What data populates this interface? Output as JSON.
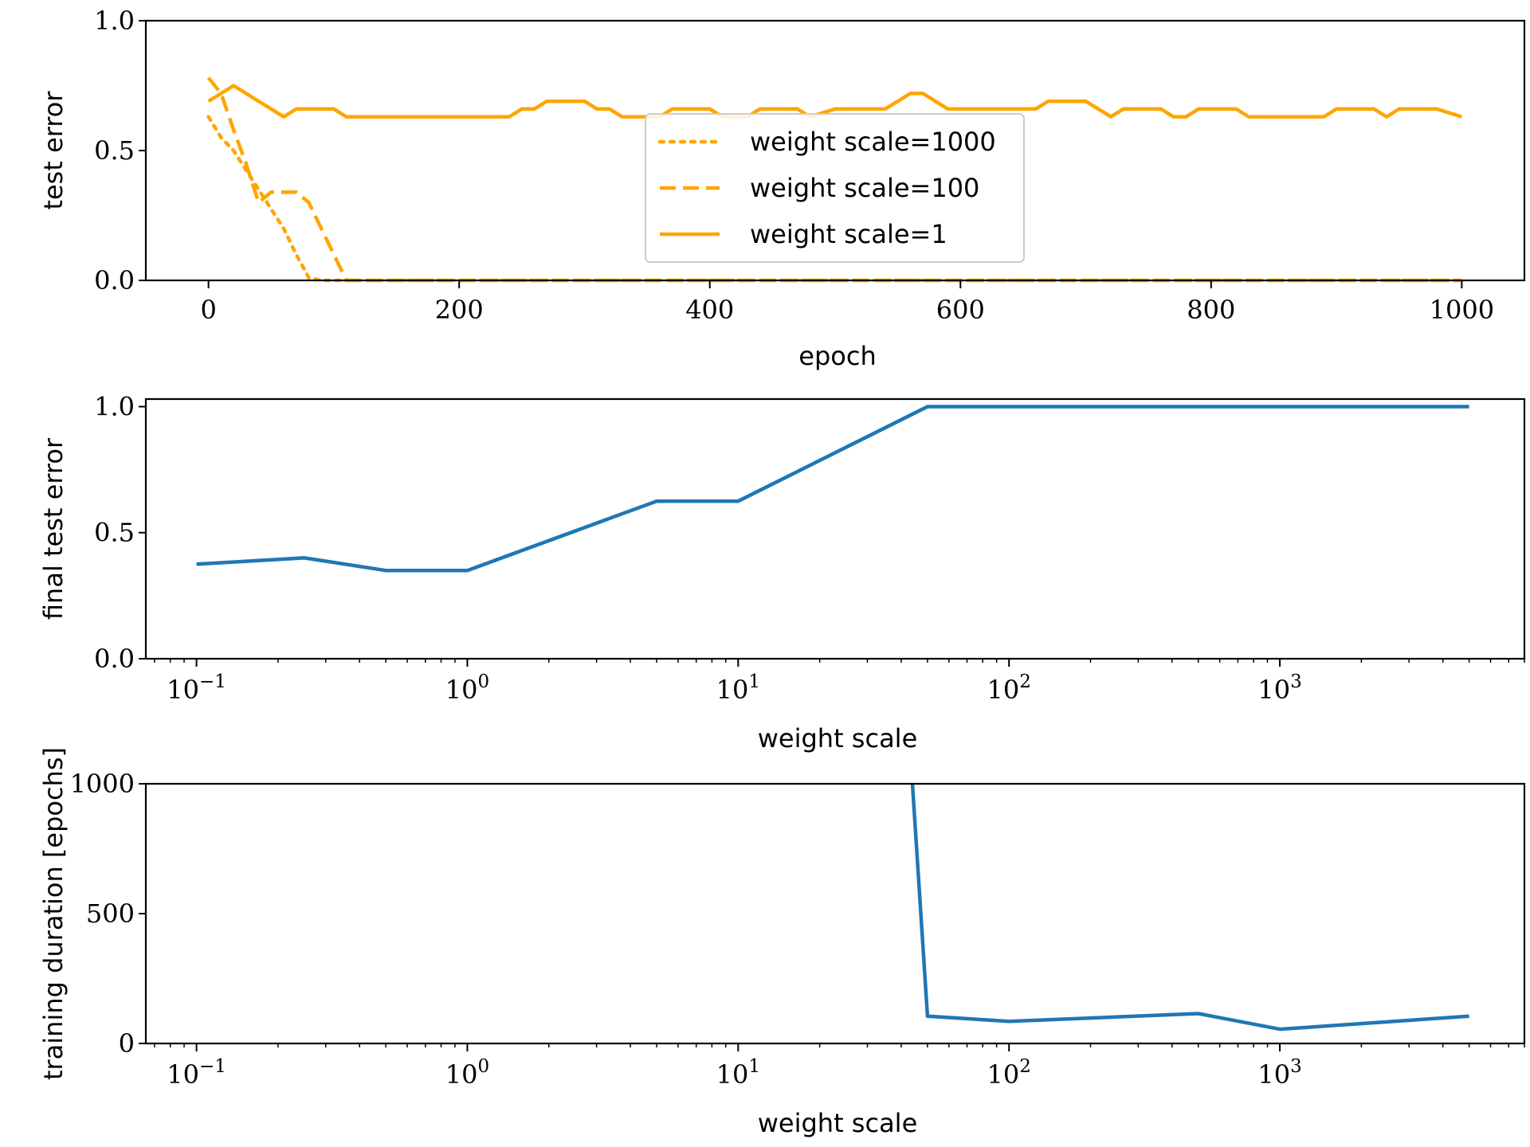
{
  "chart_data": [
    {
      "type": "line",
      "title": "",
      "xlabel": "epoch",
      "ylabel": "test error",
      "xlim": [
        -50,
        1050
      ],
      "ylim": [
        0,
        1
      ],
      "xticks": [
        0,
        200,
        400,
        600,
        800,
        1000
      ],
      "xtick_labels": [
        "0",
        "200",
        "400",
        "600",
        "800",
        "1000"
      ],
      "yticks": [
        0,
        0.5,
        1
      ],
      "ytick_labels": [
        "0.0",
        "0.5",
        "1.0"
      ],
      "legend_position": "center",
      "series": [
        {
          "name": "weight scale=1000",
          "color": "#ffa500",
          "dash": "dotted",
          "x": [
            0,
            10,
            20,
            40,
            60,
            70,
            80,
            90,
            100,
            1000
          ],
          "y": [
            0.63,
            0.55,
            0.5,
            0.35,
            0.2,
            0.1,
            0.01,
            0.0,
            0.0,
            0.0
          ]
        },
        {
          "name": "weight scale=100",
          "color": "#ffa500",
          "dash": "dashed",
          "x": [
            0,
            10,
            20,
            30,
            40,
            50,
            60,
            70,
            80,
            90,
            100,
            110,
            1000
          ],
          "y": [
            0.78,
            0.72,
            0.58,
            0.45,
            0.3,
            0.34,
            0.34,
            0.34,
            0.3,
            0.2,
            0.1,
            0.0,
            0.0
          ]
        },
        {
          "name": "weight scale=1",
          "color": "#ffa500",
          "dash": "solid",
          "x": [
            0,
            20,
            40,
            60,
            70,
            100,
            110,
            240,
            250,
            260,
            270,
            300,
            310,
            320,
            330,
            360,
            370,
            400,
            410,
            430,
            440,
            470,
            480,
            500,
            540,
            560,
            570,
            590,
            660,
            670,
            700,
            720,
            730,
            760,
            770,
            780,
            790,
            820,
            830,
            890,
            900,
            930,
            940,
            950,
            960,
            980,
            1000
          ],
          "y": [
            0.69,
            0.75,
            0.69,
            0.63,
            0.66,
            0.66,
            0.63,
            0.63,
            0.66,
            0.66,
            0.69,
            0.69,
            0.66,
            0.66,
            0.63,
            0.63,
            0.66,
            0.66,
            0.63,
            0.63,
            0.66,
            0.66,
            0.63,
            0.66,
            0.66,
            0.72,
            0.72,
            0.66,
            0.66,
            0.69,
            0.69,
            0.63,
            0.66,
            0.66,
            0.63,
            0.63,
            0.66,
            0.66,
            0.63,
            0.63,
            0.66,
            0.66,
            0.63,
            0.66,
            0.66,
            0.66,
            0.63
          ]
        }
      ]
    },
    {
      "type": "line",
      "title": "",
      "xlabel": "weight scale",
      "ylabel": "final test error",
      "xscale": "log",
      "xlim": [
        0.065,
        8000
      ],
      "ylim": [
        0,
        1.03
      ],
      "xticks": [
        0.1,
        1,
        10,
        100,
        1000
      ],
      "xtick_labels": [
        [
          "10",
          "−1"
        ],
        [
          "10",
          "0"
        ],
        [
          "10",
          "1"
        ],
        [
          "10",
          "2"
        ],
        [
          "10",
          "3"
        ]
      ],
      "yticks": [
        0,
        0.5,
        1
      ],
      "ytick_labels": [
        "0.0",
        "0.5",
        "1.0"
      ],
      "series": [
        {
          "color": "#1f77b4",
          "x": [
            0.1,
            0.25,
            0.5,
            1,
            5,
            10,
            50,
            100,
            500,
            1000,
            5000
          ],
          "y": [
            0.375,
            0.4,
            0.35,
            0.35,
            0.625,
            0.625,
            1.0,
            1.0,
            1.0,
            1.0,
            1.0
          ]
        }
      ]
    },
    {
      "type": "line",
      "title": "",
      "xlabel": "weight scale",
      "ylabel": "training duration [epochs]",
      "xscale": "log",
      "xlim": [
        0.065,
        8000
      ],
      "ylim": [
        0,
        1000
      ],
      "xticks": [
        0.1,
        1,
        10,
        100,
        1000
      ],
      "xtick_labels": [
        [
          "10",
          "−1"
        ],
        [
          "10",
          "0"
        ],
        [
          "10",
          "1"
        ],
        [
          "10",
          "2"
        ],
        [
          "10",
          "3"
        ]
      ],
      "yticks": [
        0,
        500,
        1000
      ],
      "ytick_labels": [
        "0",
        "500",
        "1000"
      ],
      "series": [
        {
          "color": "#1f77b4",
          "x": [
            44,
            50,
            100,
            500,
            1000,
            5000
          ],
          "y": [
            1000,
            105,
            85,
            115,
            55,
            105
          ]
        }
      ]
    }
  ]
}
